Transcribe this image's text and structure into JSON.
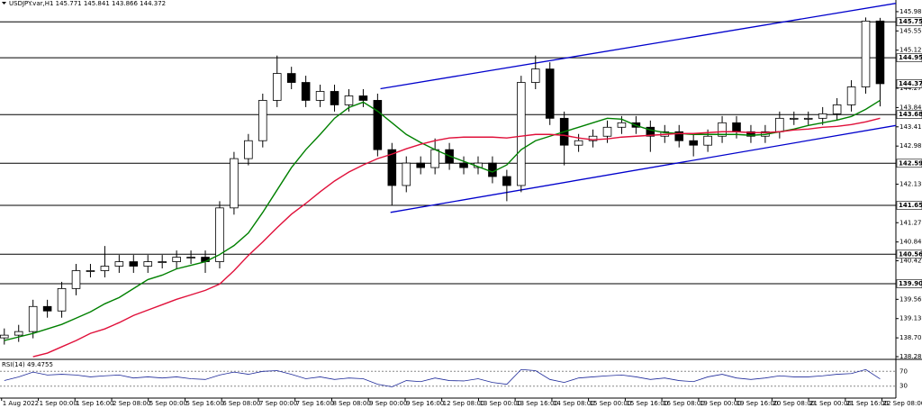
{
  "chart_data": {
    "type": "candlestick",
    "header": "USDJPY.var,H1  145.771 145.841 143.866 144.372",
    "open": [
      138.7,
      138.76,
      138.84,
      139.4,
      139.3,
      139.8,
      140.2,
      140.2,
      140.3,
      140.4,
      140.3,
      140.4,
      140.4,
      140.5,
      140.5,
      140.4,
      141.6,
      142.7,
      143.1,
      144.0,
      144.6,
      144.4,
      144.0,
      144.2,
      143.9,
      144.1,
      144.0,
      142.9,
      142.1,
      142.6,
      142.5,
      142.9,
      142.6,
      142.5,
      142.6,
      142.3,
      142.1,
      144.4,
      144.7,
      143.6,
      143.0,
      143.1,
      143.2,
      143.4,
      143.5,
      143.4,
      143.2,
      143.3,
      143.1,
      143.0,
      143.2,
      143.5,
      143.3,
      143.2,
      143.3,
      143.6,
      143.6,
      143.6,
      143.7,
      143.9,
      144.3,
      145.771
    ],
    "high": [
      138.91,
      138.99,
      139.55,
      139.55,
      139.95,
      140.35,
      140.35,
      140.75,
      140.55,
      140.55,
      140.55,
      140.55,
      140.65,
      140.65,
      140.65,
      141.75,
      142.85,
      143.25,
      144.15,
      145.0,
      144.75,
      144.55,
      144.35,
      144.35,
      144.25,
      144.25,
      144.15,
      143.05,
      142.75,
      142.75,
      143.15,
      143.05,
      142.75,
      142.75,
      142.75,
      142.45,
      144.55,
      145.0,
      144.85,
      143.75,
      143.25,
      143.35,
      143.55,
      143.65,
      143.65,
      143.55,
      143.45,
      143.45,
      143.25,
      143.35,
      143.65,
      143.65,
      143.45,
      143.45,
      143.75,
      143.75,
      143.75,
      143.85,
      144.05,
      144.45,
      145.85,
      145.841
    ],
    "low": [
      138.55,
      138.61,
      138.69,
      139.15,
      139.15,
      139.65,
      140.05,
      140.05,
      140.15,
      140.15,
      140.15,
      140.25,
      140.25,
      140.35,
      140.15,
      140.25,
      141.45,
      142.55,
      142.95,
      143.85,
      144.25,
      143.85,
      143.85,
      143.75,
      143.75,
      143.85,
      142.75,
      141.65,
      141.95,
      142.35,
      142.35,
      142.45,
      142.35,
      142.35,
      142.15,
      141.75,
      141.95,
      144.25,
      143.45,
      142.55,
      142.85,
      142.95,
      143.05,
      143.25,
      143.25,
      142.85,
      143.05,
      142.95,
      142.75,
      142.85,
      143.05,
      143.15,
      143.05,
      143.05,
      143.15,
      143.45,
      143.45,
      143.45,
      143.55,
      143.75,
      144.15,
      143.866
    ],
    "close": [
      138.76,
      138.84,
      139.4,
      139.3,
      139.8,
      140.2,
      140.2,
      140.3,
      140.4,
      140.3,
      140.4,
      140.4,
      140.5,
      140.5,
      140.4,
      141.6,
      142.7,
      143.1,
      144.0,
      144.6,
      144.4,
      144.0,
      144.2,
      143.9,
      144.1,
      144.0,
      142.9,
      142.1,
      142.6,
      142.5,
      142.9,
      142.6,
      142.5,
      142.6,
      142.3,
      142.1,
      144.4,
      144.7,
      143.6,
      143.0,
      143.1,
      143.2,
      143.4,
      143.5,
      143.4,
      143.2,
      143.3,
      143.1,
      143.0,
      143.2,
      143.5,
      143.3,
      143.2,
      143.3,
      143.6,
      143.6,
      143.6,
      143.7,
      143.9,
      144.3,
      145.77,
      144.372
    ],
    "moving_averages": [
      {
        "color": "#008000",
        "values": [
          138.64,
          138.72,
          138.8,
          138.9,
          139.0,
          139.14,
          139.28,
          139.46,
          139.6,
          139.8,
          140.0,
          140.1,
          140.24,
          140.32,
          140.4,
          140.56,
          140.76,
          141.04,
          141.5,
          142.0,
          142.5,
          142.9,
          143.24,
          143.6,
          143.84,
          143.96,
          143.76,
          143.5,
          143.24,
          143.06,
          142.9,
          142.76,
          142.64,
          142.52,
          142.4,
          142.56,
          142.9,
          143.1,
          143.2,
          143.3,
          143.4,
          143.5,
          143.6,
          143.58,
          143.44,
          143.34,
          143.28,
          143.26,
          143.24,
          143.24,
          143.24,
          143.24,
          143.22,
          143.24,
          143.3,
          143.36,
          143.44,
          143.5,
          143.56,
          143.64,
          143.8,
          144.0
        ]
      },
      {
        "color": "#e0103a",
        "values": [
          null,
          null,
          138.28,
          138.36,
          138.5,
          138.64,
          138.8,
          138.9,
          139.04,
          139.2,
          139.32,
          139.44,
          139.56,
          139.66,
          139.76,
          139.9,
          140.2,
          140.54,
          140.84,
          141.16,
          141.46,
          141.7,
          141.96,
          142.2,
          142.4,
          142.56,
          142.7,
          142.8,
          142.92,
          143.02,
          143.1,
          143.16,
          143.18,
          143.18,
          143.18,
          143.16,
          143.2,
          143.24,
          143.24,
          143.22,
          143.16,
          143.12,
          143.14,
          143.18,
          143.2,
          143.22,
          143.24,
          143.26,
          143.26,
          143.28,
          143.3,
          143.3,
          143.28,
          143.28,
          143.3,
          143.34,
          143.36,
          143.4,
          143.42,
          143.46,
          143.52,
          143.6
        ]
      }
    ],
    "trendlines": [
      {
        "color": "#0000cc",
        "x": [
          26.2,
          63.5
        ],
        "y": [
          144.26,
          146.24
        ]
      },
      {
        "color": "#0000cc",
        "x": [
          26.9,
          62.1
        ],
        "y": [
          141.5,
          143.44
        ]
      }
    ],
    "levels": [
      145.753,
      144.951,
      143.683,
      142.596,
      141.657,
      140.566,
      139.908
    ],
    "current_price": 144.372,
    "xlim": [
      -0.3,
      62.1
    ],
    "ylim": [
      138.24,
      146.24
    ],
    "yticks": [
      {
        "value": 145.98,
        "label": "145.980"
      },
      {
        "value": 145.55,
        "label": "145.550"
      },
      {
        "value": 145.12,
        "label": "145.120"
      },
      {
        "value": 144.27,
        "label": "144.270"
      },
      {
        "value": 143.84,
        "label": "143.840"
      },
      {
        "value": 143.41,
        "label": "143.410"
      },
      {
        "value": 142.98,
        "label": "142.980"
      },
      {
        "value": 142.13,
        "label": "142.130"
      },
      {
        "value": 141.27,
        "label": "141.270"
      },
      {
        "value": 140.84,
        "label": "140.840"
      },
      {
        "value": 140.42,
        "label": "140.420"
      },
      {
        "value": 139.56,
        "label": "139.560"
      },
      {
        "value": 139.13,
        "label": "139.130"
      },
      {
        "value": 138.7,
        "label": "138.700"
      },
      {
        "value": 138.28,
        "label": "138.280"
      }
    ],
    "xticks": [
      {
        "value": -0.19,
        "label": "1 Aug 2022"
      },
      {
        "value": 2.37,
        "label": "1 Sep 00:00"
      },
      {
        "value": 4.92,
        "label": "1 Sep 16:00"
      },
      {
        "value": 7.48,
        "label": "2 Sep 08:00"
      },
      {
        "value": 10.03,
        "label": "5 Sep 00:00"
      },
      {
        "value": 12.59,
        "label": "5 Sep 16:00"
      },
      {
        "value": 15.14,
        "label": "6 Sep 08:00"
      },
      {
        "value": 17.7,
        "label": "7 Sep 00:00"
      },
      {
        "value": 20.25,
        "label": "7 Sep 16:00"
      },
      {
        "value": 22.81,
        "label": "8 Sep 08:00"
      },
      {
        "value": 25.36,
        "label": "9 Sep 00:00"
      },
      {
        "value": 27.92,
        "label": "9 Sep 16:00"
      },
      {
        "value": 30.47,
        "label": "12 Sep 08:00"
      },
      {
        "value": 33.03,
        "label": "13 Sep 00:00"
      },
      {
        "value": 35.58,
        "label": "13 Sep 16:00"
      },
      {
        "value": 38.14,
        "label": "14 Sep 08:00"
      },
      {
        "value": 40.69,
        "label": "15 Sep 00:00"
      },
      {
        "value": 43.25,
        "label": "15 Sep 16:00"
      },
      {
        "value": 45.8,
        "label": "16 Sep 08:00"
      },
      {
        "value": 48.36,
        "label": "19 Sep 00:00"
      },
      {
        "value": 50.91,
        "label": "19 Sep 16:00"
      },
      {
        "value": 53.47,
        "label": "20 Sep 08:00"
      },
      {
        "value": 56.02,
        "label": "21 Sep 00:00"
      },
      {
        "value": 58.58,
        "label": "21 Sep 16:00"
      },
      {
        "value": 61.13,
        "label": "22 Sep 08:00"
      }
    ],
    "rsi": {
      "label": "RSI(14) 49.4755",
      "color": "#1e2a9a",
      "ylim": [
        0,
        100
      ],
      "levels": [
        70,
        30
      ],
      "values": [
        45,
        55,
        68,
        60,
        62,
        60,
        55,
        58,
        60,
        52,
        55,
        52,
        55,
        50,
        48,
        60,
        68,
        62,
        70,
        72,
        62,
        50,
        55,
        48,
        52,
        50,
        35,
        28,
        45,
        42,
        52,
        45,
        44,
        50,
        40,
        35,
        75,
        72,
        48,
        40,
        52,
        55,
        58,
        60,
        55,
        48,
        52,
        45,
        42,
        55,
        62,
        52,
        48,
        52,
        58,
        55,
        55,
        58,
        62,
        64,
        75,
        49.4755
      ]
    }
  }
}
